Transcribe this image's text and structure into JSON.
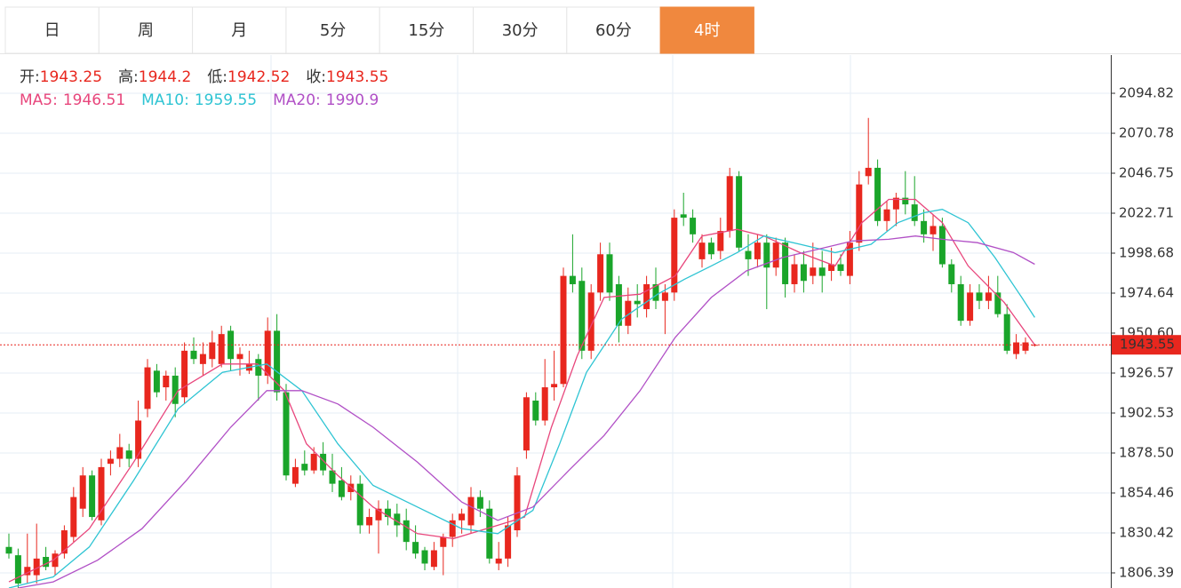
{
  "tabs": [
    "日",
    "周",
    "月",
    "5分",
    "15分",
    "30分",
    "60分",
    "4时"
  ],
  "active_tab": 7,
  "chart_data": {
    "type": "candlestick",
    "up_color": "#e8271e",
    "down_color": "#1aa52a",
    "ohlc_summary": [
      {
        "label": "开:",
        "value": 1943.25
      },
      {
        "label": "高:",
        "value": 1944.2
      },
      {
        "label": "低:",
        "value": 1942.52
      },
      {
        "label": "收:",
        "value": 1943.55
      }
    ],
    "ylim": [
      1797.3,
      2117.8
    ],
    "yticks": [
      2094.82,
      2070.78,
      2046.75,
      2022.71,
      1998.68,
      1974.64,
      {
        "value": 1950.6,
        "label": "1950.60"
      },
      1926.57,
      1902.53,
      {
        "value": 1878.5,
        "label": "1878.50"
      },
      1854.46,
      1830.42,
      1806.39
    ],
    "grid": true,
    "candles": [
      [
        1822,
        1830,
        1815,
        1818
      ],
      [
        1817,
        1821,
        1797,
        1800
      ],
      [
        1805,
        1830,
        1800,
        1810
      ],
      [
        1805,
        1836,
        1800,
        1815
      ],
      [
        1816,
        1822,
        1808,
        1810
      ],
      [
        1810,
        1820,
        1805,
        1818
      ],
      [
        1818,
        1835,
        1815,
        1832
      ],
      [
        1828,
        1858,
        1825,
        1852
      ],
      [
        1845,
        1870,
        1840,
        1865
      ],
      [
        1865,
        1868,
        1838,
        1840
      ],
      [
        1838,
        1875,
        1835,
        1870
      ],
      [
        1872,
        1880,
        1865,
        1875
      ],
      [
        1875,
        1890,
        1870,
        1882
      ],
      [
        1880,
        1884,
        1870,
        1875
      ],
      [
        1875,
        1910,
        1870,
        1898
      ],
      [
        1905,
        1935,
        1900,
        1930
      ],
      [
        1928,
        1932,
        1912,
        1915
      ],
      [
        1918,
        1928,
        1910,
        1925
      ],
      [
        1925,
        1930,
        1900,
        1908
      ],
      [
        1912,
        1945,
        1908,
        1940
      ],
      [
        1940,
        1948,
        1932,
        1935
      ],
      [
        1932,
        1945,
        1925,
        1938
      ],
      [
        1935,
        1952,
        1930,
        1945
      ],
      [
        1932,
        1955,
        1930,
        1950
      ],
      [
        1952,
        1955,
        1928,
        1935
      ],
      [
        1935,
        1942,
        1925,
        1938
      ],
      [
        1928,
        1940,
        1926,
        1932
      ],
      [
        1935,
        1938,
        1910,
        1925
      ],
      [
        1925,
        1960,
        1920,
        1952
      ],
      [
        1952,
        1962,
        1910,
        1915
      ],
      [
        1915,
        1920,
        1862,
        1865
      ],
      [
        1860,
        1875,
        1858,
        1870
      ],
      [
        1872,
        1880,
        1865,
        1868
      ],
      [
        1868,
        1882,
        1866,
        1878
      ],
      [
        1878,
        1885,
        1865,
        1868
      ],
      [
        1868,
        1878,
        1855,
        1860
      ],
      [
        1862,
        1870,
        1850,
        1852
      ],
      [
        1855,
        1865,
        1850,
        1860
      ],
      [
        1860,
        1865,
        1830,
        1835
      ],
      [
        1835,
        1845,
        1830,
        1840
      ],
      [
        1838,
        1850,
        1818,
        1845
      ],
      [
        1845,
        1850,
        1835,
        1840
      ],
      [
        1842,
        1848,
        1828,
        1835
      ],
      [
        1838,
        1845,
        1820,
        1825
      ],
      [
        1825,
        1835,
        1815,
        1818
      ],
      [
        1820,
        1822,
        1808,
        1812
      ],
      [
        1810,
        1825,
        1808,
        1820
      ],
      [
        1822,
        1830,
        1805,
        1828
      ],
      [
        1828,
        1842,
        1822,
        1838
      ],
      [
        1838,
        1845,
        1830,
        1842
      ],
      [
        1835,
        1858,
        1830,
        1852
      ],
      [
        1852,
        1856,
        1840,
        1845
      ],
      [
        1845,
        1850,
        1812,
        1815
      ],
      [
        1812,
        1825,
        1808,
        1815
      ],
      [
        1815,
        1840,
        1810,
        1835
      ],
      [
        1832,
        1870,
        1828,
        1865
      ],
      [
        1880,
        1915,
        1875,
        1912
      ],
      [
        1910,
        1915,
        1895,
        1898
      ],
      [
        1898,
        1935,
        1895,
        1918
      ],
      [
        1918,
        1940,
        1910,
        1920
      ],
      [
        1920,
        1990,
        1918,
        1985
      ],
      [
        1985,
        2010,
        1975,
        1980
      ],
      [
        1982,
        1990,
        1935,
        1940
      ],
      [
        1940,
        1980,
        1935,
        1975
      ],
      [
        1975,
        2005,
        1970,
        1998
      ],
      [
        1998,
        2005,
        1970,
        1975
      ],
      [
        1980,
        1985,
        1945,
        1955
      ],
      [
        1955,
        1978,
        1950,
        1970
      ],
      [
        1970,
        1980,
        1960,
        1968
      ],
      [
        1965,
        1985,
        1960,
        1980
      ],
      [
        1980,
        1990,
        1965,
        1970
      ],
      [
        1970,
        1980,
        1950,
        1975
      ],
      [
        1975,
        2025,
        1970,
        2020
      ],
      [
        2022,
        2035,
        2015,
        2020
      ],
      [
        2020,
        2025,
        2005,
        2010
      ],
      [
        1995,
        2010,
        1990,
        2005
      ],
      [
        2005,
        2008,
        1995,
        1998
      ],
      [
        2000,
        2020,
        1995,
        2012
      ],
      [
        2012,
        2050,
        2008,
        2045
      ],
      [
        2045,
        2048,
        2000,
        2002
      ],
      [
        2000,
        2010,
        1985,
        1995
      ],
      [
        1995,
        2010,
        1990,
        2005
      ],
      [
        2005,
        2010,
        1965,
        1990
      ],
      [
        1990,
        2008,
        1985,
        2005
      ],
      [
        2005,
        2008,
        1972,
        1980
      ],
      [
        1980,
        1998,
        1975,
        1992
      ],
      [
        1992,
        2000,
        1975,
        1982
      ],
      [
        1985,
        2005,
        1980,
        1990
      ],
      [
        1990,
        2000,
        1975,
        1985
      ],
      [
        1988,
        2002,
        1982,
        1992
      ],
      [
        1992,
        1998,
        1985,
        1988
      ],
      [
        1985,
        2012,
        1980,
        2005
      ],
      [
        2005,
        2048,
        2000,
        2040
      ],
      [
        2045,
        2080,
        2040,
        2050
      ],
      [
        2050,
        2055,
        2015,
        2018
      ],
      [
        2018,
        2030,
        2012,
        2025
      ],
      [
        2025,
        2035,
        2015,
        2032
      ],
      [
        2032,
        2048,
        2022,
        2028
      ],
      [
        2028,
        2045,
        2015,
        2018
      ],
      [
        2018,
        2025,
        2005,
        2010
      ],
      [
        2010,
        2022,
        2000,
        2015
      ],
      [
        2015,
        2020,
        1990,
        1992
      ],
      [
        1992,
        1995,
        1975,
        1980
      ],
      [
        1980,
        1985,
        1955,
        1958
      ],
      [
        1958,
        1980,
        1955,
        1975
      ],
      [
        1975,
        1980,
        1965,
        1970
      ],
      [
        1970,
        1985,
        1965,
        1975
      ],
      [
        1975,
        1985,
        1960,
        1962
      ],
      [
        1962,
        1968,
        1938,
        1940
      ],
      [
        1938,
        1950,
        1935,
        1945
      ],
      [
        1940,
        1948,
        1938,
        1945
      ],
      [
        1943.25,
        1944.2,
        1942.52,
        1943.55
      ]
    ],
    "series": [
      {
        "name": "MA5:",
        "color": "#e8467c",
        "last": 1946.51,
        "x": [
          0,
          4.8,
          8.7,
          13.5,
          18.3,
          23.1,
          26.9,
          29.8,
          32.2,
          35.6,
          39.4,
          44.2,
          48.1,
          52.9,
          55.8,
          58.7,
          61.5,
          64.4,
          68.3,
          72.1,
          75,
          78.8,
          81.7,
          85.6,
          89.4,
          92.3,
          95.2,
          98.1,
          101,
          103.8,
          107.7,
          111
        ],
        "values": [
          1801,
          1814,
          1833,
          1873,
          1916,
          1932,
          1932,
          1916,
          1884,
          1865,
          1846,
          1830,
          1827,
          1835,
          1840,
          1894,
          1937,
          1972,
          1974,
          1985,
          2009,
          2013,
          2009,
          1999,
          1991,
          2017,
          2031,
          2031,
          2017,
          1991,
          1969,
          1943.5
        ]
      },
      {
        "name": "MA10:",
        "color": "#2ec4d3",
        "last": 1959.55,
        "x": [
          0,
          4.8,
          8.7,
          13.5,
          18.3,
          23.1,
          27.9,
          31.7,
          35.6,
          39.4,
          44.2,
          49,
          52.9,
          56.7,
          59.6,
          62.5,
          66.3,
          70.2,
          73.1,
          76,
          78.8,
          81.7,
          85.6,
          89.4,
          93.3,
          96.2,
          99,
          101,
          103.8,
          106.7,
          109.6,
          111
        ],
        "values": [
          1797.3,
          1804,
          1822,
          1862,
          1905,
          1927,
          1932,
          1916,
          1884,
          1859,
          1846,
          1833,
          1830,
          1844,
          1884,
          1927,
          1959,
          1974,
          1983,
          1991,
          1999,
          2009,
          2004,
          1999,
          2004,
          2017,
          2023,
          2025,
          2017,
          1996,
          1972,
          1960
        ]
      },
      {
        "name": "MA20:",
        "color": "#b150c6",
        "last": 1990.9,
        "x": [
          1,
          4.8,
          9.6,
          14.4,
          19.2,
          24,
          27.9,
          31.7,
          35.6,
          39.4,
          44.2,
          49,
          52.9,
          56.7,
          60.6,
          64.4,
          68.3,
          72.1,
          76,
          79.8,
          83.7,
          87.5,
          91.3,
          95.2,
          98.1,
          101,
          104.8,
          108.7,
          111
        ],
        "values": [
          1797.3,
          1801,
          1814,
          1833,
          1862,
          1894,
          1916,
          1916,
          1908,
          1894,
          1873,
          1849,
          1838,
          1846,
          1868,
          1889,
          1916,
          1948,
          1972,
          1988,
          1996,
          2001,
          2006,
          2007,
          2009,
          2007,
          2005,
          1999,
          1992
        ]
      }
    ]
  }
}
